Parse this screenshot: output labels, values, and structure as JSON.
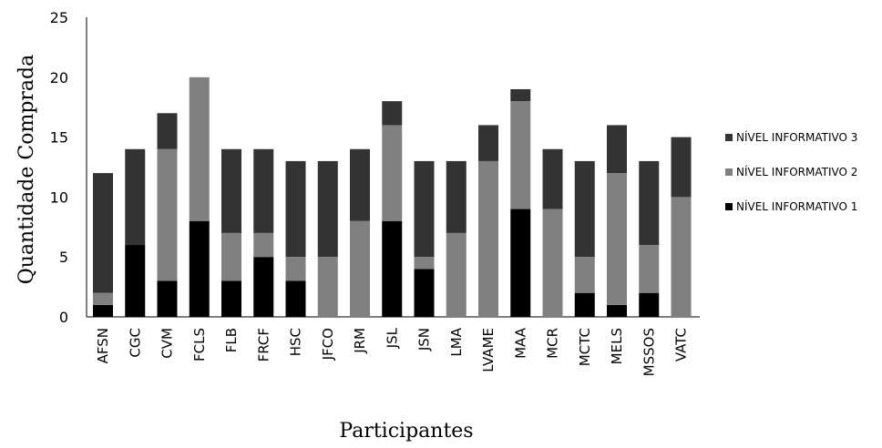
{
  "chart_data": {
    "type": "bar",
    "stacked": true,
    "xlabel": "Participantes",
    "ylabel": "Quantidade Comprada",
    "ylim": [
      0,
      25
    ],
    "yticks": [
      0,
      5,
      10,
      15,
      20,
      25
    ],
    "grid": false,
    "legend_position": "right",
    "categories": [
      "AFSN",
      "CGC",
      "CVM",
      "FCLS",
      "FLB",
      "FRCF",
      "HSC",
      "JFCO",
      "JRM",
      "JSL",
      "JSN",
      "LMA",
      "LVAME",
      "MAA",
      "MCR",
      "MCTC",
      "MELS",
      "MSSOS",
      "VATC"
    ],
    "series": [
      {
        "name": "NÍVEL INFORMATIVO 1",
        "color": "#000000",
        "values": [
          1,
          6,
          3,
          8,
          3,
          5,
          3,
          0,
          0,
          8,
          4,
          0,
          0,
          9,
          0,
          2,
          1,
          2,
          0
        ]
      },
      {
        "name": "NÍVEL INFORMATIVO 2",
        "color": "#808080",
        "values": [
          1,
          0,
          11,
          12,
          4,
          2,
          2,
          5,
          8,
          8,
          1,
          7,
          13,
          9,
          9,
          3,
          11,
          4,
          10
        ]
      },
      {
        "name": "NÍVEL INFORMATIVO 3",
        "color": "#333333",
        "values": [
          10,
          8,
          3,
          0,
          7,
          7,
          8,
          8,
          6,
          2,
          8,
          6,
          3,
          1,
          5,
          8,
          4,
          7,
          5
        ]
      }
    ],
    "legend_order": [
      "NÍVEL INFORMATIVO 3",
      "NÍVEL INFORMATIVO 2",
      "NÍVEL INFORMATIVO 1"
    ]
  }
}
